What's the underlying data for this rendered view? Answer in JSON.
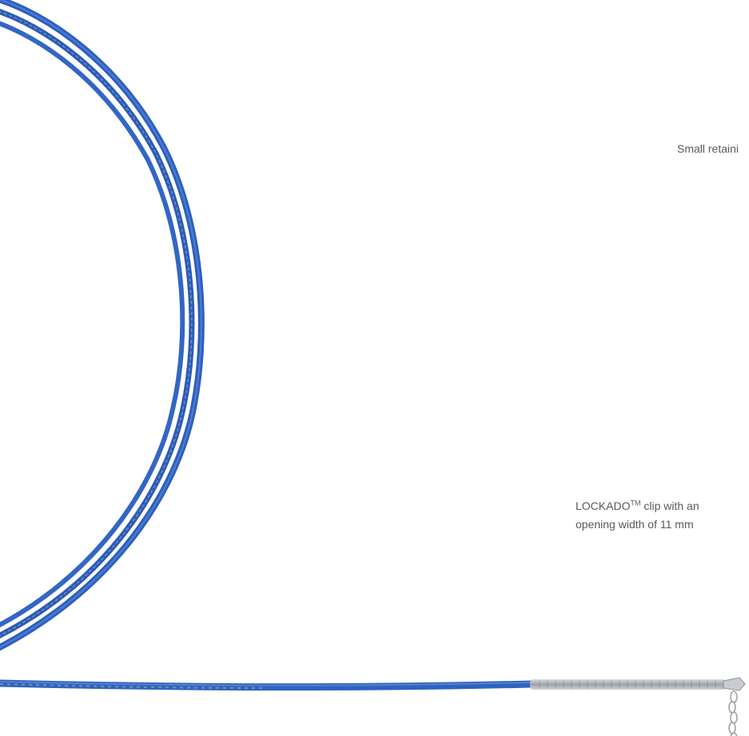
{
  "captions": {
    "retaining": "Small retaini",
    "clip_brand": "LOCKADO",
    "clip_tm": "TM",
    "clip_rest": " clip with an",
    "clip_line2": "opening width of 11 mm"
  },
  "colors": {
    "background": "#ffffff",
    "catheter_blue": "#2f63c0",
    "catheter_dark": "#1f4b9a",
    "metal": "#b8bcc0",
    "caption_text": "#555a5e"
  },
  "icons": {
    "device": "coiled-catheter-icon"
  }
}
